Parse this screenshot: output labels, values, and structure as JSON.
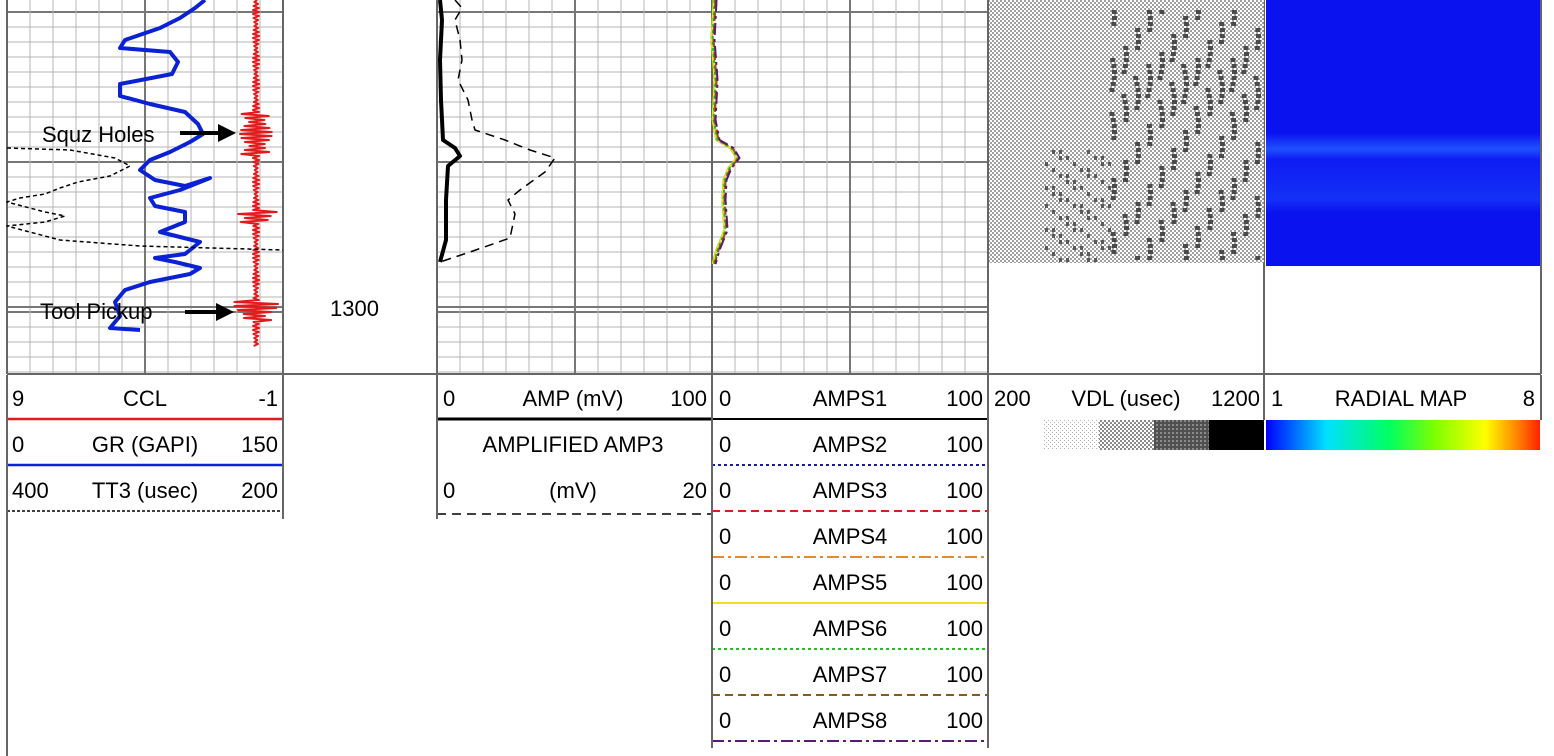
{
  "track1": {
    "annotations": {
      "squz_holes": "Squz Holes",
      "tool_pickup": "Tool Pickup"
    },
    "curve_colors": {
      "ccl": "#e31a1c",
      "gr": "#0a22d4",
      "tt3": "#000000"
    }
  },
  "depth_track": {
    "depth_label": "1300"
  },
  "headers": {
    "track1": [
      {
        "min": "9",
        "name": "CCL",
        "max": "-1",
        "color": "#e31a1c",
        "style": "solid"
      },
      {
        "min": "0",
        "name": "GR (GAPI)",
        "max": "150",
        "color": "#0a22d4",
        "style": "solid"
      },
      {
        "min": "400",
        "name": "TT3 (usec)",
        "max": "200",
        "color": "#000000",
        "style": "dotted"
      }
    ],
    "amp": {
      "amp": {
        "min": "0",
        "name": "AMP (mV)",
        "max": "100",
        "color": "#000000"
      },
      "amp3": {
        "title": "AMPLIFIED AMP3",
        "min": "0",
        "unit": "(mV)",
        "max": "20",
        "color": "#000000"
      }
    },
    "amps": [
      {
        "min": "0",
        "name": "AMPS1",
        "max": "100",
        "color": "#000000",
        "dash": "none"
      },
      {
        "min": "0",
        "name": "AMPS2",
        "max": "100",
        "color": "#1a1aa0",
        "dash": "3,3"
      },
      {
        "min": "0",
        "name": "AMPS3",
        "max": "100",
        "color": "#e31a1c",
        "dash": "8,5"
      },
      {
        "min": "0",
        "name": "AMPS4",
        "max": "100",
        "color": "#e88a2a",
        "dash": "12,4,3,4"
      },
      {
        "min": "0",
        "name": "AMPS5",
        "max": "100",
        "color": "#f0e020",
        "dash": "none"
      },
      {
        "min": "0",
        "name": "AMPS6",
        "max": "100",
        "color": "#22c022",
        "dash": "3,3"
      },
      {
        "min": "0",
        "name": "AMPS7",
        "max": "100",
        "color": "#8a5a1a",
        "dash": "8,5"
      },
      {
        "min": "0",
        "name": "AMPS8",
        "max": "100",
        "color": "#5a1a7a",
        "dash": "12,4,3,4"
      }
    ],
    "vdl": {
      "min": "200",
      "name": "VDL (usec)",
      "max": "1200"
    },
    "radial": {
      "min": "1",
      "name": "RADIAL MAP",
      "max": "8"
    }
  },
  "chart_data": {
    "type": "well-log",
    "tracks": [
      "CCL / GR / TT3",
      "Depth",
      "AMP / AMPLIFIED AMP3",
      "AMPS1-8",
      "VDL",
      "RADIAL MAP"
    ],
    "depth_label": "1300",
    "annotations": [
      "Squz Holes",
      "Tool Pickup"
    ],
    "colorbars": {
      "vdl": [
        "#d8d8d8",
        "#a0a0a0",
        "#606060",
        "#000000"
      ],
      "radial": [
        "#0000ff",
        "#00e0ff",
        "#00ff60",
        "#80ff00",
        "#ffff00",
        "#ff6000",
        "#ff2000"
      ]
    },
    "radial_map_color": "#0a12f0"
  }
}
